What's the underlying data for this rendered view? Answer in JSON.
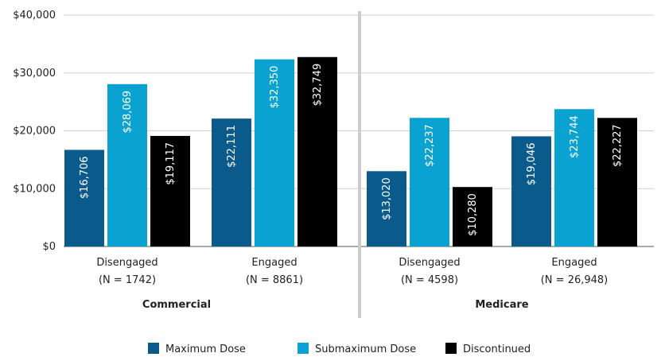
{
  "chart_data": {
    "type": "bar",
    "ylim": [
      0,
      40000
    ],
    "yticks": [
      "$0",
      "$10,000",
      "$20,000",
      "$30,000",
      "$40,000"
    ],
    "grid": true,
    "legend_position": "bottom-center",
    "groups": [
      {
        "name": "Commercial",
        "categories": [
          {
            "name": "Disengaged",
            "n": "(N = 1742)",
            "values": [
              16706,
              28069,
              19117
            ],
            "labels": [
              "$16,706",
              "$28,069",
              "$19,117"
            ]
          },
          {
            "name": "Engaged",
            "n": "(N = 8861)",
            "values": [
              22111,
              32350,
              32749
            ],
            "labels": [
              "$22,111",
              "$32,350",
              "$32,749"
            ]
          }
        ]
      },
      {
        "name": "Medicare",
        "categories": [
          {
            "name": "Disengaged",
            "n": "(N = 4598)",
            "values": [
              13020,
              22237,
              10280
            ],
            "labels": [
              "$13,020",
              "$22,237",
              "$10,280"
            ]
          },
          {
            "name": "Engaged",
            "n": "(N = 26,948)",
            "values": [
              19046,
              23744,
              22227
            ],
            "labels": [
              "$19,046",
              "$23,744",
              "$22,227"
            ]
          }
        ]
      }
    ],
    "series": [
      {
        "name": "Maximum Dose",
        "color": "#0b5a8c"
      },
      {
        "name": "Submaximum Dose",
        "color": "#0aa2d0"
      },
      {
        "name": "Discontinued",
        "color": "#000000"
      }
    ]
  }
}
